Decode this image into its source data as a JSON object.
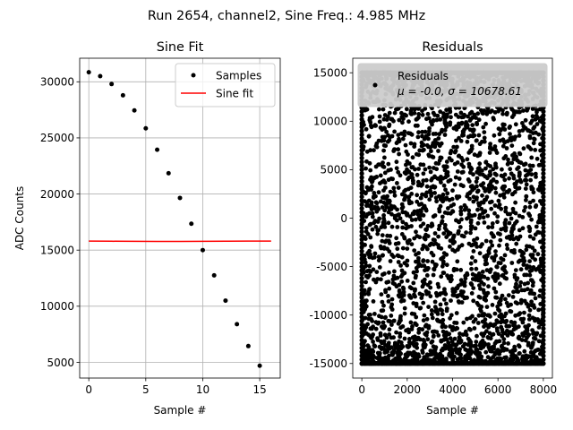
{
  "figure": {
    "suptitle": "Run 2654, channel2, Sine Freq.: 4.985 MHz"
  },
  "chart_data": [
    {
      "type": "scatter",
      "title": "Sine Fit",
      "xlabel": "Sample #",
      "ylabel": "ADC Counts",
      "xlim": [
        -0.8,
        16.8
      ],
      "ylim": [
        3600,
        32100
      ],
      "xticks": [
        0,
        5,
        10,
        15
      ],
      "yticks": [
        5000,
        10000,
        15000,
        20000,
        25000,
        30000
      ],
      "grid": true,
      "legend_position": "top-right",
      "series": [
        {
          "name": "Samples",
          "kind": "points",
          "color": "#000000",
          "x": [
            0,
            1,
            2,
            3,
            4,
            5,
            6,
            7,
            8,
            9,
            10,
            11,
            12,
            13,
            14,
            15
          ],
          "values": [
            30850,
            30500,
            29800,
            28800,
            27450,
            25850,
            23950,
            21850,
            19650,
            17350,
            15000,
            12750,
            10500,
            8400,
            6450,
            4700
          ]
        },
        {
          "name": "Sine fit",
          "kind": "line",
          "color": "#ff0000",
          "x": [
            0,
            2,
            4,
            6,
            8,
            10,
            12,
            14,
            16
          ],
          "values": [
            15800,
            15790,
            15780,
            15770,
            15775,
            15785,
            15790,
            15800,
            15800
          ]
        }
      ]
    },
    {
      "type": "scatter",
      "title": "Residuals",
      "xlabel": "Sample #",
      "ylabel": "",
      "xlim": [
        -400,
        8400
      ],
      "ylim": [
        -16500,
        16500
      ],
      "xticks": [
        0,
        2000,
        4000,
        6000,
        8000
      ],
      "yticks": [
        -15000,
        -10000,
        -5000,
        0,
        5000,
        10000,
        15000
      ],
      "grid": false,
      "legend_position": "top-left",
      "series": [
        {
          "name": "Residuals",
          "stats_label": "μ = -0.0, σ = 10678.61",
          "kind": "points",
          "color": "#000000",
          "n_samples": 8000,
          "mean": -0.0,
          "std": 10678.61,
          "amplitude": 15000
        }
      ]
    }
  ]
}
